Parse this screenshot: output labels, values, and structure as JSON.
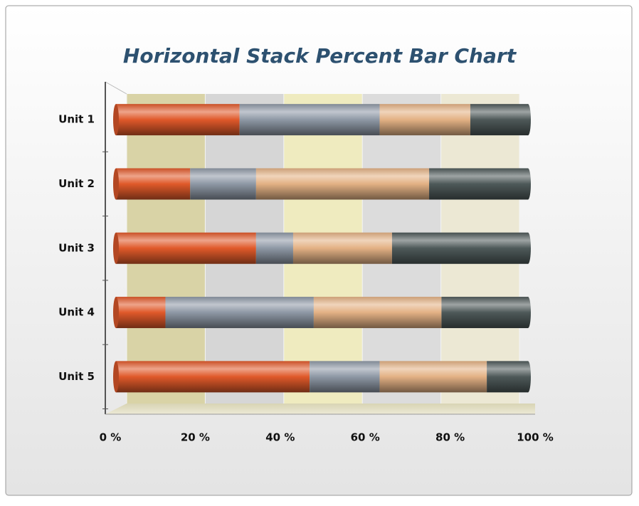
{
  "chart_data": {
    "type": "stacked_percent_bar",
    "orientation": "horizontal",
    "title": "Horizontal Stack Percent Bar Chart",
    "categories": [
      "Unit 1",
      "Unit 2",
      "Unit 3",
      "Unit 4",
      "Unit 5"
    ],
    "series": [
      {
        "color": "#e0592a",
        "values": [
          30,
          18,
          34,
          12,
          47
        ]
      },
      {
        "color": "#8e98a5",
        "values": [
          34,
          16,
          9,
          36,
          17
        ]
      },
      {
        "color": "#e3b184",
        "values": [
          22,
          42,
          24,
          31,
          26
        ]
      },
      {
        "color": "#4e5959",
        "values": [
          14,
          24,
          33,
          21,
          10
        ]
      }
    ],
    "xlim": [
      0,
      100
    ],
    "xticks": [
      {
        "value": 0,
        "label": "0 %"
      },
      {
        "value": 20,
        "label": "20 %"
      },
      {
        "value": 40,
        "label": "40 %"
      },
      {
        "value": 60,
        "label": "60 %"
      },
      {
        "value": 80,
        "label": "80 %"
      },
      {
        "value": 100,
        "label": "100 %"
      }
    ],
    "grid": true
  }
}
